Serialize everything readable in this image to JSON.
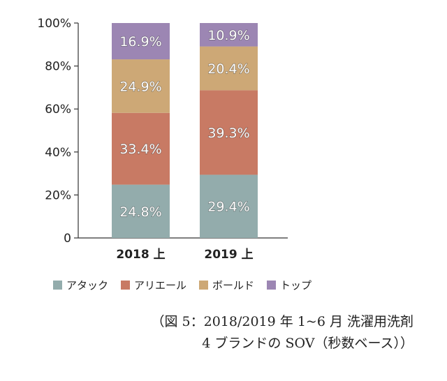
{
  "chart_data": {
    "type": "bar",
    "stacked": true,
    "categories": [
      "2018 上",
      "2019 上"
    ],
    "series": [
      {
        "name": "アタック",
        "color": "#93ACAC",
        "values": [
          24.8,
          29.4
        ]
      },
      {
        "name": "アリエール",
        "color": "#C87A64",
        "values": [
          33.4,
          39.3
        ]
      },
      {
        "name": "ボールド",
        "color": "#CDA876",
        "values": [
          24.9,
          20.4
        ]
      },
      {
        "name": "トップ",
        "color": "#9C86B3",
        "values": [
          16.9,
          10.9
        ]
      }
    ],
    "ylim": [
      0,
      100
    ],
    "yticks": [
      "0",
      "20%",
      "40%",
      "60%",
      "80%",
      "100%"
    ],
    "grid": false,
    "legend_position": "bottom"
  },
  "caption": {
    "line1": "（図 5：2018/2019 年 1~6 月 洗濯用洗剤",
    "line2": "4 ブランドの SOV（秒数ベース））"
  }
}
